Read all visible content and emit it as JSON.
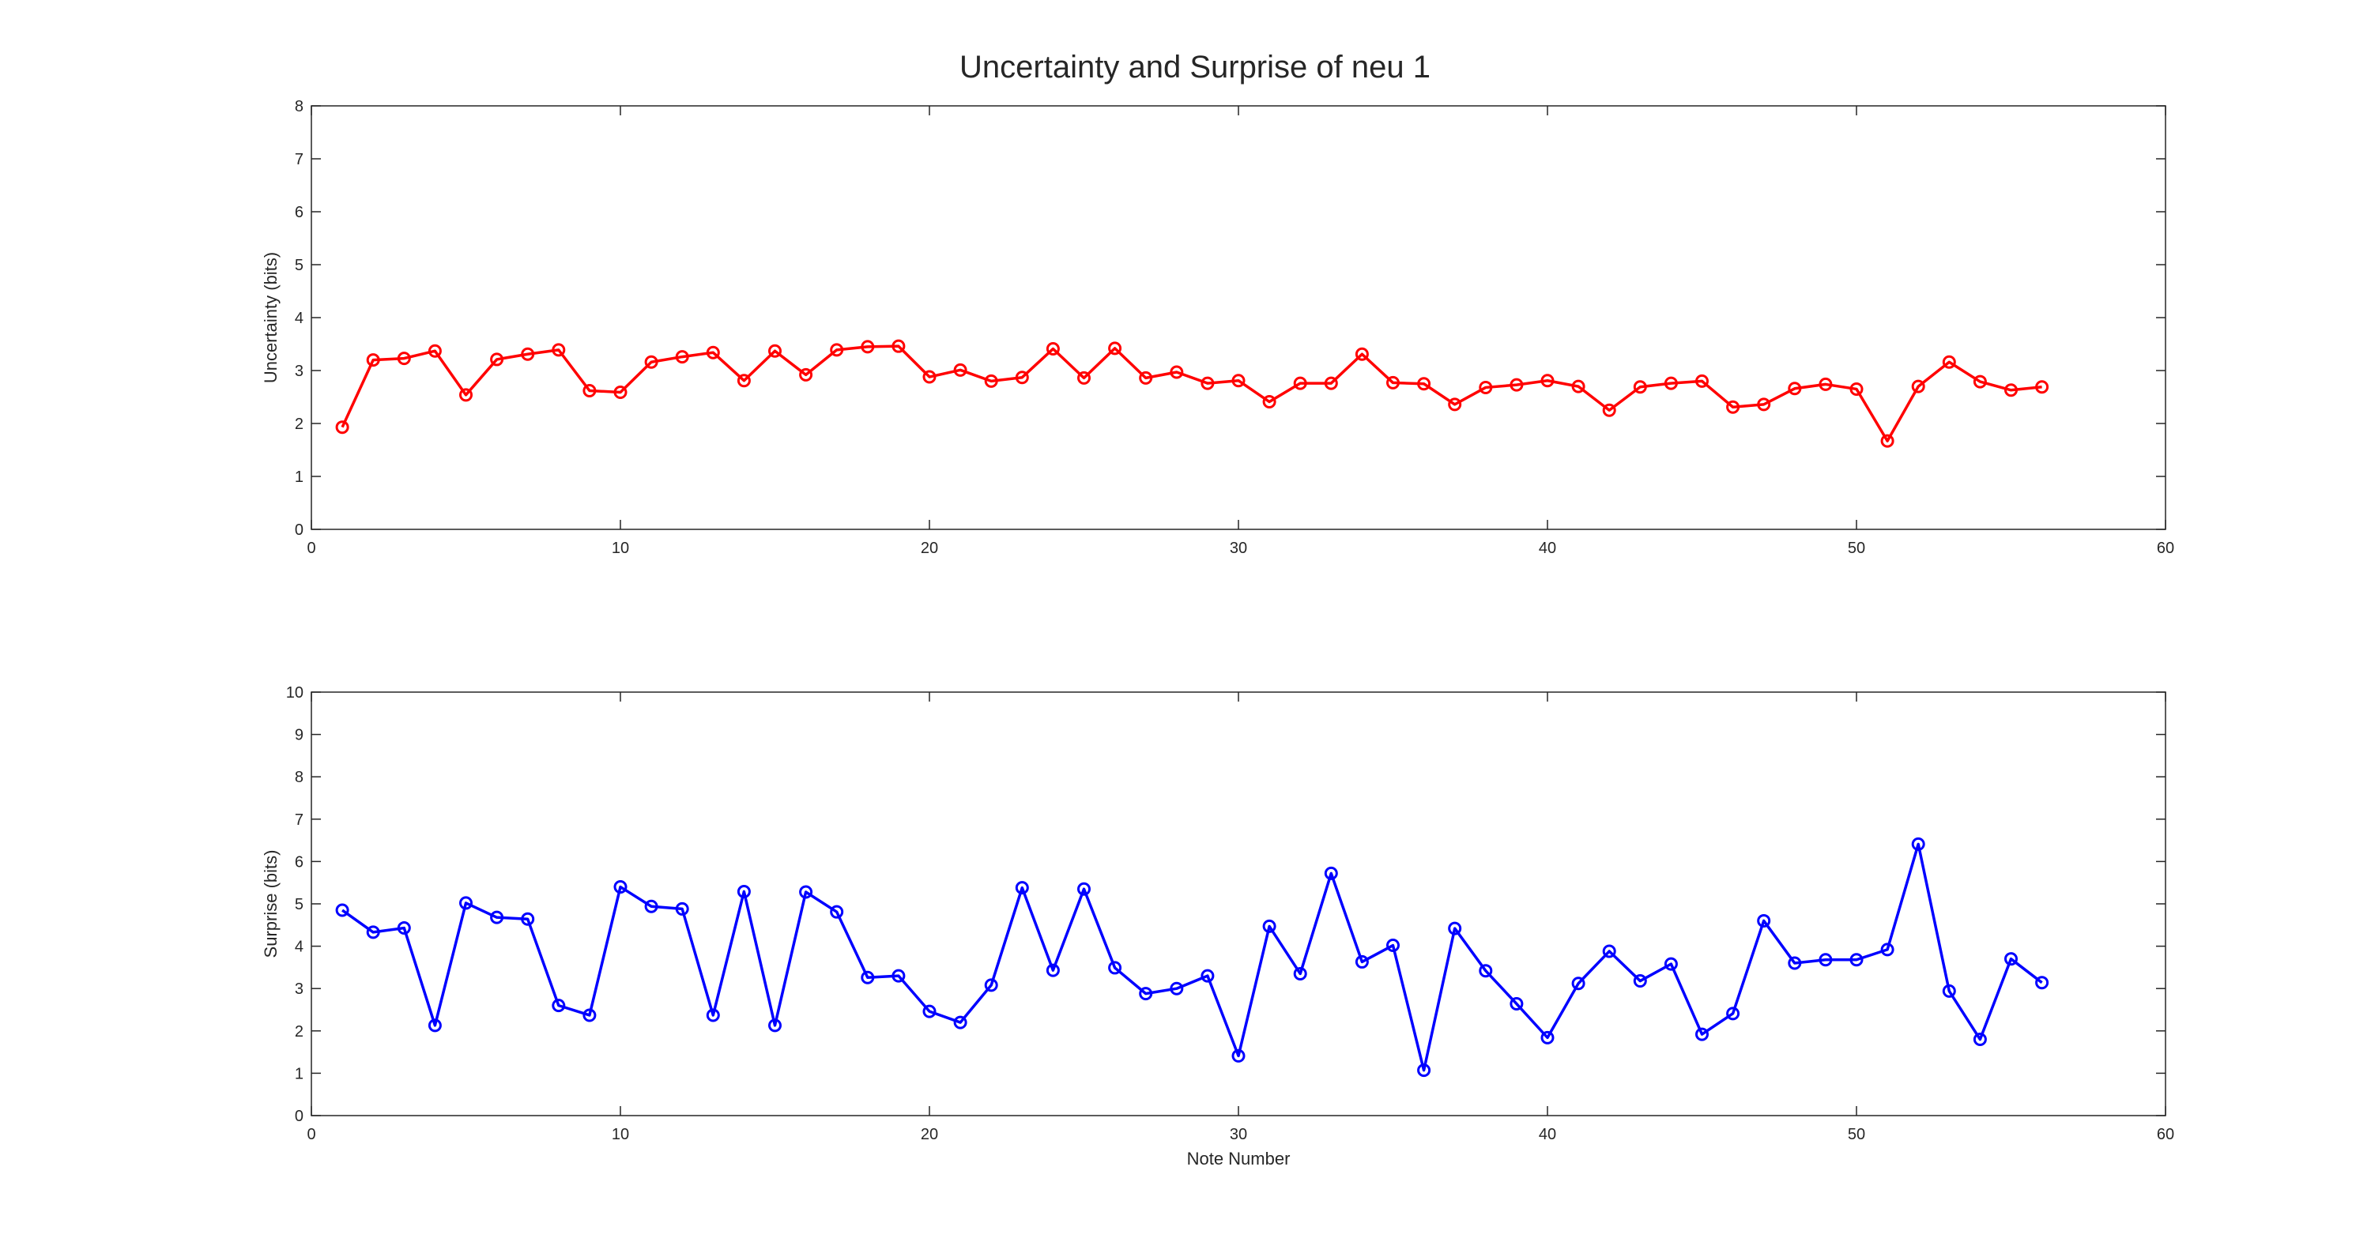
{
  "figure": {
    "title": "Uncertainty and Surprise of neu 1"
  },
  "chart_data": [
    {
      "type": "line",
      "title": "Uncertainty and Surprise of neu 1",
      "xlabel": "",
      "ylabel": "Uncertainty (bits)",
      "xlim": [
        0,
        60
      ],
      "ylim": [
        0,
        8
      ],
      "xticks": [
        0,
        10,
        20,
        30,
        40,
        50,
        60
      ],
      "yticks": [
        0,
        1,
        2,
        3,
        4,
        5,
        6,
        7,
        8
      ],
      "grid": false,
      "color": "#ff0000",
      "marker": "circle",
      "x": [
        1,
        2,
        3,
        4,
        5,
        6,
        7,
        8,
        9,
        10,
        11,
        12,
        13,
        14,
        15,
        16,
        17,
        18,
        19,
        20,
        21,
        22,
        23,
        24,
        25,
        26,
        27,
        28,
        29,
        30,
        31,
        32,
        33,
        34,
        35,
        36,
        37,
        38,
        39,
        40,
        41,
        42,
        43,
        44,
        45,
        46,
        47,
        48,
        49,
        50,
        51,
        52,
        53,
        54,
        55,
        56
      ],
      "series": [
        {
          "values": [
            1.93,
            3.2,
            3.23,
            3.37,
            2.54,
            3.21,
            3.31,
            3.39,
            2.62,
            2.59,
            3.16,
            3.26,
            3.34,
            2.81,
            3.37,
            2.92,
            3.39,
            3.45,
            3.46,
            2.88,
            3.01,
            2.8,
            2.87,
            3.41,
            2.86,
            3.42,
            2.86,
            2.97,
            2.76,
            2.81,
            2.41,
            2.76,
            2.76,
            3.31,
            2.77,
            2.75,
            2.36,
            2.68,
            2.73,
            2.81,
            2.7,
            2.25,
            2.69,
            2.76,
            2.8,
            2.31,
            2.36,
            2.66,
            2.74,
            2.65,
            1.67,
            2.7,
            3.16,
            2.79,
            2.63,
            2.69
          ]
        }
      ]
    },
    {
      "type": "line",
      "title": "",
      "xlabel": "Note Number",
      "ylabel": "Surprise (bits)",
      "xlim": [
        0,
        60
      ],
      "ylim": [
        0,
        10
      ],
      "xticks": [
        0,
        10,
        20,
        30,
        40,
        50,
        60
      ],
      "yticks": [
        0,
        1,
        2,
        3,
        4,
        5,
        6,
        7,
        8,
        9,
        10
      ],
      "grid": false,
      "color": "#0000ff",
      "marker": "circle",
      "x": [
        1,
        2,
        3,
        4,
        5,
        6,
        7,
        8,
        9,
        10,
        11,
        12,
        13,
        14,
        15,
        16,
        17,
        18,
        19,
        20,
        21,
        22,
        23,
        24,
        25,
        26,
        27,
        28,
        29,
        30,
        31,
        32,
        33,
        34,
        35,
        36,
        37,
        38,
        39,
        40,
        41,
        42,
        43,
        44,
        45,
        46,
        47,
        48,
        49,
        50,
        51,
        52,
        53,
        54,
        55,
        56
      ],
      "series": [
        {
          "values": [
            4.85,
            4.33,
            4.43,
            2.13,
            5.02,
            4.68,
            4.64,
            2.6,
            2.37,
            5.4,
            4.94,
            4.88,
            2.37,
            5.29,
            2.13,
            5.28,
            4.81,
            3.26,
            3.3,
            2.46,
            2.2,
            3.08,
            5.38,
            3.43,
            5.35,
            3.49,
            2.88,
            3.0,
            3.3,
            1.41,
            4.47,
            3.35,
            5.72,
            3.63,
            4.02,
            1.07,
            4.42,
            3.42,
            2.64,
            1.84,
            3.12,
            3.88,
            3.18,
            3.58,
            1.92,
            2.41,
            4.6,
            3.6,
            3.68,
            3.68,
            3.92,
            6.41,
            2.94,
            1.8,
            3.7,
            3.14
          ]
        }
      ]
    }
  ]
}
